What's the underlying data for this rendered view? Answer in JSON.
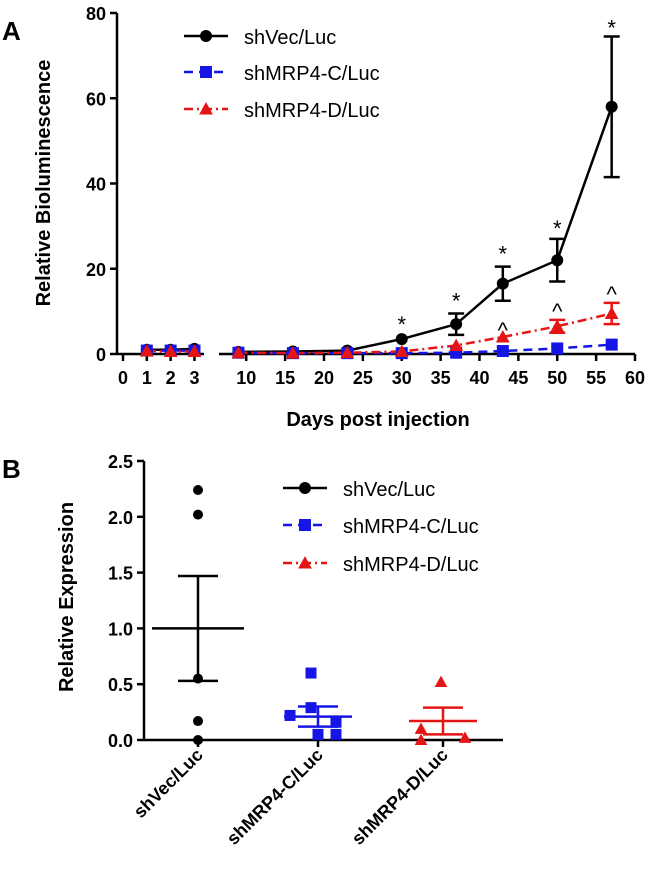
{
  "colors": {
    "shVec": "#000000",
    "shMRP4C": "#1515e6",
    "shMRP4D": "#e61515"
  },
  "chart_data": [
    {
      "panel": "A",
      "type": "line",
      "xlabel": "Days post injection",
      "ylabel": "Relative Bioluminescence",
      "ylim": [
        0,
        80
      ],
      "yticks": [
        0,
        20,
        40,
        60,
        80
      ],
      "xticks": [
        0,
        1,
        2,
        3,
        10,
        15,
        20,
        25,
        30,
        35,
        40,
        45,
        50,
        55,
        60
      ],
      "x_axis_break_after": 3,
      "legend": {
        "position": "top-left",
        "entries": [
          {
            "label": "shVec/Luc",
            "marker": "circle",
            "style": "solid"
          },
          {
            "label": "shMRP4-C/Luc",
            "marker": "square",
            "style": "dashed"
          },
          {
            "label": "shMRP4-D/Luc",
            "marker": "triangle",
            "style": "dash-dot"
          }
        ]
      },
      "series": [
        {
          "name": "shVec/Luc",
          "color": "#000000",
          "x": [
            1,
            2,
            3,
            9,
            16,
            23,
            30,
            37,
            43,
            50,
            57
          ],
          "y": [
            1.0,
            1.0,
            1.2,
            0.5,
            0.6,
            0.8,
            3.5,
            7.0,
            16.5,
            22.0,
            58.0
          ],
          "err": [
            0.3,
            0.3,
            0.3,
            0.2,
            0.2,
            0.3,
            0.8,
            2.5,
            4.0,
            5.0,
            16.5
          ]
        },
        {
          "name": "shMRP4-C/Luc",
          "color": "#1515e6",
          "x": [
            1,
            2,
            3,
            9,
            16,
            23,
            30,
            37,
            43,
            50,
            57
          ],
          "y": [
            0.8,
            0.8,
            0.8,
            0.3,
            0.2,
            0.2,
            0.2,
            0.3,
            0.7,
            1.3,
            2.2
          ],
          "err": [
            0.2,
            0.2,
            0.2,
            0.1,
            0.1,
            0.1,
            0.1,
            0.2,
            0.3,
            0.4,
            0.5
          ]
        },
        {
          "name": "shMRP4-D/Luc",
          "color": "#e61515",
          "x": [
            1,
            2,
            3,
            9,
            16,
            23,
            30,
            37,
            43,
            50,
            57
          ],
          "y": [
            0.7,
            0.6,
            0.6,
            0.3,
            0.2,
            0.3,
            0.6,
            2.0,
            4.0,
            6.5,
            9.5
          ],
          "err": [
            0.2,
            0.2,
            0.2,
            0.1,
            0.1,
            0.1,
            0.2,
            0.5,
            0.8,
            1.5,
            2.5
          ]
        }
      ],
      "annotations": [
        {
          "x": 30,
          "y": 8.5,
          "text": "*"
        },
        {
          "x": 37,
          "y": 14.0,
          "text": "*"
        },
        {
          "x": 43,
          "y": 25.0,
          "text": "*"
        },
        {
          "x": 50,
          "y": 31.0,
          "text": "*"
        },
        {
          "x": 57,
          "y": 78.0,
          "text": "*"
        },
        {
          "x": 43,
          "y": 7.5,
          "text": "^"
        },
        {
          "x": 50,
          "y": 12.0,
          "text": "^"
        },
        {
          "x": 57,
          "y": 16.0,
          "text": "^"
        }
      ]
    },
    {
      "panel": "B",
      "type": "scatter",
      "ylabel": "Relative  Expression",
      "ylim": [
        0,
        2.5
      ],
      "yticks": [
        "0.0",
        "0.5",
        "1.0",
        "1.5",
        "2.0",
        "2.5"
      ],
      "categories": [
        "shVec/Luc",
        "shMRP4-C/Luc",
        "shMRP4-D/Luc"
      ],
      "legend": {
        "position": "top-right",
        "entries": [
          {
            "label": "shVec/Luc",
            "marker": "circle",
            "style": "solid"
          },
          {
            "label": "shMRP4-C/Luc",
            "marker": "square",
            "style": "dashed"
          },
          {
            "label": "shMRP4-D/Luc",
            "marker": "triangle",
            "style": "dash-dot"
          }
        ]
      },
      "series": [
        {
          "name": "shVec/Luc",
          "color": "#000000",
          "marker": "circle",
          "points": [
            2.24,
            2.02,
            0.55,
            0.17,
            0.0
          ],
          "mean": 1.0,
          "sem_low": 0.53,
          "sem_high": 1.47
        },
        {
          "name": "shMRP4-C/Luc",
          "color": "#1515e6",
          "marker": "square",
          "points": [
            0.6,
            0.29,
            0.22,
            0.16,
            0.05,
            0.16,
            0.05
          ],
          "mean": 0.21,
          "sem_low": 0.12,
          "sem_high": 0.3
        },
        {
          "name": "shMRP4-D/Luc",
          "color": "#e61515",
          "marker": "triangle",
          "points": [
            0.52,
            0.1,
            0.0,
            0.02
          ],
          "mean": 0.17,
          "sem_low": 0.05,
          "sem_high": 0.29
        }
      ]
    }
  ]
}
